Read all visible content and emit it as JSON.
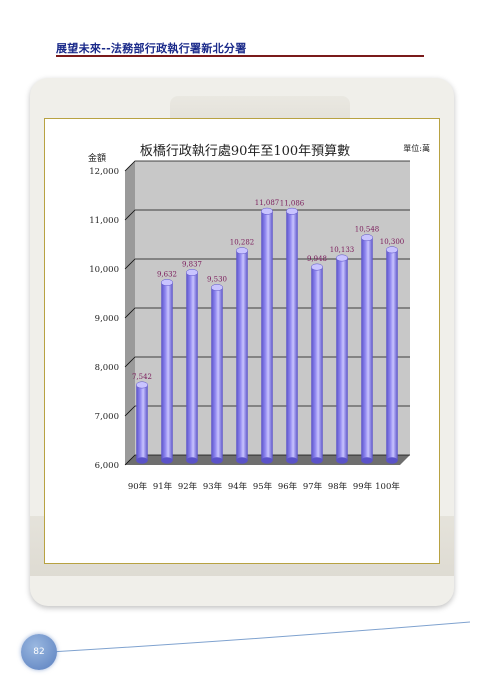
{
  "header": {
    "title": "展望未來--法務部行政執行署新北分署"
  },
  "page": {
    "number": "82"
  },
  "colors": {
    "bar": "#8f87f0",
    "bar_dark": "#5a52c8",
    "bar_light": "#c9c4ff",
    "plot_bg": "#c8c8c8",
    "label": "#7a1a5a",
    "accent": "#1a2a8a"
  },
  "chart_data": {
    "type": "bar",
    "title": "板橋行政執行處90年至100年預算數",
    "ylabel": "金額",
    "unit_label": "單位:萬",
    "categories": [
      "90年",
      "91年",
      "92年",
      "93年",
      "94年",
      "95年",
      "96年",
      "97年",
      "98年",
      "99年",
      "100年"
    ],
    "values": [
      7542,
      9632,
      9837,
      9530,
      10282,
      11087,
      11086,
      9948,
      10133,
      10548,
      10300
    ],
    "value_labels": [
      "7,542",
      "9,632",
      "9,837",
      "9,530",
      "10,282",
      "11,087",
      "11,086",
      "9,948",
      "10,133",
      "10,548",
      "10,300"
    ],
    "yticks": [
      "6,000",
      "7,000",
      "8,000",
      "9,000",
      "10,000",
      "11,000",
      "12,000"
    ],
    "ylim": [
      6000,
      12000
    ],
    "grid": true,
    "legend": "none"
  }
}
